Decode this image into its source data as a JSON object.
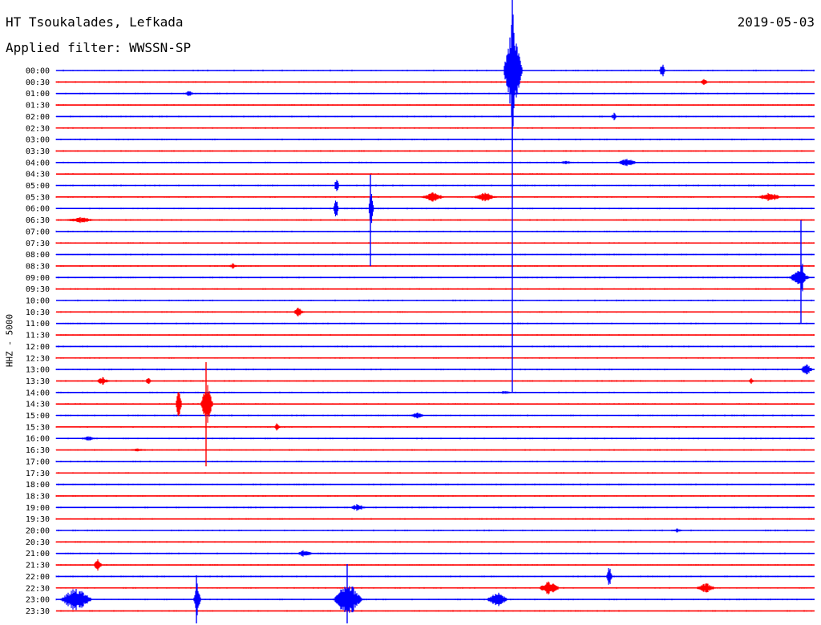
{
  "header": {
    "station": "HT Tsoukalades, Lefkada",
    "date": "2019-05-03",
    "filter": "Applied filter: WWSSN-SP"
  },
  "channel_label": "HHZ - 5000",
  "colors": {
    "even_trace": "#0000ff",
    "odd_trace": "#ff0000",
    "text": "#000000"
  },
  "time_labels": [
    "00:00",
    "00:30",
    "01:00",
    "01:30",
    "02:00",
    "02:30",
    "03:00",
    "03:30",
    "04:00",
    "04:30",
    "05:00",
    "05:30",
    "06:00",
    "06:30",
    "07:00",
    "07:30",
    "08:00",
    "08:30",
    "09:00",
    "09:30",
    "10:00",
    "10:30",
    "11:00",
    "11:30",
    "12:00",
    "12:30",
    "13:00",
    "13:30",
    "14:00",
    "14:30",
    "15:00",
    "15:30",
    "16:00",
    "16:30",
    "17:00",
    "17:30",
    "18:00",
    "18:30",
    "19:00",
    "19:30",
    "20:00",
    "20:30",
    "21:00",
    "21:30",
    "22:00",
    "22:30",
    "23:00",
    "23:30"
  ]
}
